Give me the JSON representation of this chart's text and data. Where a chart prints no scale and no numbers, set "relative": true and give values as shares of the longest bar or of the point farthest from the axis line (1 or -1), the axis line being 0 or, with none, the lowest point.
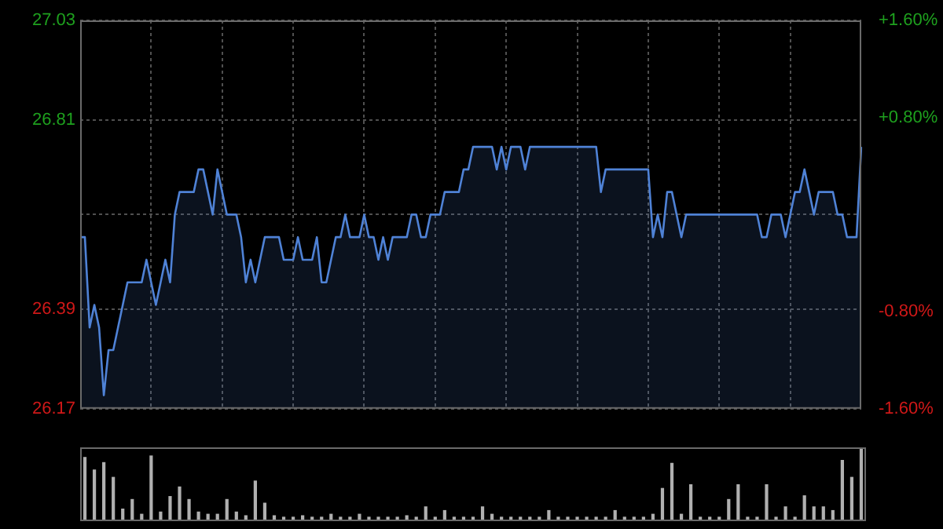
{
  "chart_data": [
    {
      "type": "area",
      "categories": [
        null,
        null,
        null,
        null,
        null,
        null,
        null,
        null,
        null,
        null,
        null,
        null,
        null,
        null,
        null,
        null,
        null,
        null,
        null,
        null,
        null,
        null,
        null,
        null,
        null,
        null,
        null,
        null,
        null,
        null,
        null,
        null,
        null,
        null,
        null,
        null,
        null,
        null,
        null,
        null,
        null,
        null,
        null,
        null,
        null,
        null,
        null,
        null,
        null,
        null,
        null,
        null,
        null,
        null,
        null,
        null,
        null,
        null,
        null,
        null,
        null,
        null,
        null,
        null,
        null,
        null,
        null,
        null,
        null,
        null,
        null,
        null,
        null,
        null,
        null,
        null,
        null,
        null,
        null,
        null,
        null,
        null,
        null,
        null,
        null,
        null,
        null,
        null,
        null,
        null,
        null,
        null,
        null,
        null,
        null,
        null,
        null,
        null,
        null,
        null,
        null,
        null,
        null,
        null,
        null,
        null,
        null,
        null,
        null,
        null,
        null,
        null,
        null,
        null,
        null,
        null,
        null,
        null,
        null,
        null,
        null,
        null,
        null,
        null,
        null,
        null,
        null,
        null,
        null,
        null,
        null,
        null,
        null,
        null,
        null,
        null,
        null,
        null,
        null,
        null,
        null,
        null,
        null,
        null,
        null,
        null,
        null,
        null,
        null,
        null,
        null,
        null,
        null,
        null,
        null,
        null,
        null,
        null,
        null,
        null,
        null,
        null,
        null,
        null,
        null,
        null
      ],
      "series": [
        {
          "color": "#4f82d6",
          "values": [
            26.55,
            26.55,
            26.35,
            26.4,
            26.35,
            26.2,
            26.3,
            26.3,
            26.35,
            26.4,
            26.45,
            26.45,
            26.45,
            26.45,
            26.5,
            26.45,
            26.4,
            26.45,
            26.5,
            26.45,
            26.6,
            26.65,
            26.65,
            26.65,
            26.65,
            26.7,
            26.7,
            26.65,
            26.6,
            26.7,
            26.65,
            26.6,
            26.6,
            26.6,
            26.55,
            26.45,
            26.5,
            26.45,
            26.5,
            26.55,
            26.55,
            26.55,
            26.55,
            26.5,
            26.5,
            26.5,
            26.55,
            26.5,
            26.5,
            26.5,
            26.55,
            26.45,
            26.45,
            26.5,
            26.55,
            26.55,
            26.6,
            26.55,
            26.55,
            26.55,
            26.6,
            26.55,
            26.55,
            26.5,
            26.55,
            26.5,
            26.55,
            26.55,
            26.55,
            26.55,
            26.6,
            26.6,
            26.55,
            26.55,
            26.6,
            26.6,
            26.6,
            26.65,
            26.65,
            26.65,
            26.65,
            26.7,
            26.7,
            26.75,
            26.75,
            26.75,
            26.75,
            26.75,
            26.7,
            26.75,
            26.7,
            26.75,
            26.75,
            26.75,
            26.7,
            26.75,
            26.75,
            26.75,
            26.75,
            26.75,
            26.75,
            26.75,
            26.75,
            26.75,
            26.75,
            26.75,
            26.75,
            26.75,
            26.75,
            26.75,
            26.65,
            26.7,
            26.7,
            26.7,
            26.7,
            26.7,
            26.7,
            26.7,
            26.7,
            26.7,
            26.7,
            26.55,
            26.6,
            26.55,
            26.65,
            26.65,
            26.6,
            26.55,
            26.6,
            26.6,
            26.6,
            26.6,
            26.6,
            26.6,
            26.6,
            26.6,
            26.6,
            26.6,
            26.6,
            26.6,
            26.6,
            26.6,
            26.6,
            26.6,
            26.55,
            26.55,
            26.6,
            26.6,
            26.6,
            26.55,
            26.6,
            26.65,
            26.65,
            26.7,
            26.65,
            26.6,
            26.65,
            26.65,
            26.65,
            26.65,
            26.6,
            26.6,
            26.55,
            26.55,
            26.55,
            26.75
          ]
        }
      ],
      "ylim": [
        26.17,
        27.03
      ],
      "yticks": [
        26.17,
        26.39,
        {
          "value": 26.6,
          "label": null
        },
        26.81,
        27.03
      ],
      "y2lim": [
        -1.6,
        1.6
      ],
      "y2ticks": [
        {
          "value": -1.6,
          "label": "-1.60%"
        },
        {
          "value": -0.8,
          "label": "-0.80%"
        },
        {
          "value": 0,
          "label": null
        },
        {
          "value": 0.8,
          "label": "+0.80%"
        },
        {
          "value": 1.6,
          "label": "+1.60%"
        }
      ],
      "grid": true,
      "legend": false,
      "marker": "none"
    },
    {
      "type": "bar",
      "relative": true,
      "legend": false,
      "categories": [
        null,
        null,
        null,
        null,
        null,
        null,
        null,
        null,
        null,
        null,
        null,
        null,
        null,
        null,
        null,
        null,
        null,
        null,
        null,
        null,
        null,
        null,
        null,
        null,
        null,
        null,
        null,
        null,
        null,
        null,
        null,
        null,
        null,
        null,
        null,
        null,
        null,
        null,
        null,
        null,
        null,
        null,
        null,
        null,
        null,
        null,
        null,
        null,
        null,
        null,
        null,
        null,
        null,
        null,
        null,
        null,
        null,
        null,
        null,
        null,
        null,
        null,
        null,
        null,
        null,
        null,
        null,
        null,
        null,
        null,
        null,
        null,
        null,
        null,
        null,
        null,
        null,
        null,
        null,
        null,
        null,
        null,
        null
      ],
      "series": [
        {
          "color": "#b0b0b0",
          "values": [
            0.87,
            0.7,
            0.8,
            0.6,
            0.17,
            0.3,
            0.1,
            0.89,
            0.13,
            0.34,
            0.47,
            0.3,
            0.13,
            0.1,
            0.1,
            0.3,
            0.13,
            0.08,
            0.55,
            0.25,
            0.08,
            0.06,
            0.06,
            0.08,
            0.06,
            0.06,
            0.1,
            0.06,
            0.06,
            0.1,
            0.06,
            0.06,
            0.06,
            0.06,
            0.08,
            0.06,
            0.2,
            0.06,
            0.15,
            0.06,
            0.06,
            0.06,
            0.2,
            0.1,
            0.06,
            0.06,
            0.06,
            0.06,
            0.06,
            0.15,
            0.06,
            0.06,
            0.06,
            0.06,
            0.06,
            0.06,
            0.15,
            0.06,
            0.06,
            0.06,
            0.1,
            0.45,
            0.79,
            0.1,
            0.5,
            0.06,
            0.06,
            0.06,
            0.3,
            0.5,
            0.06,
            0.06,
            0.5,
            0.06,
            0.2,
            0.06,
            0.35,
            0.2,
            0.2,
            0.15,
            0.83,
            0.6,
            1.0
          ]
        }
      ]
    }
  ]
}
